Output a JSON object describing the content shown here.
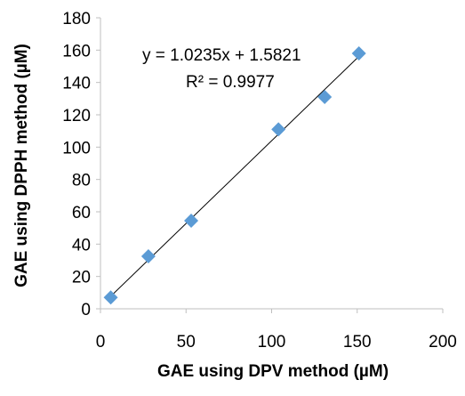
{
  "chart_data": {
    "type": "scatter",
    "title": "",
    "xlabel": "GAE using DPV method (µM)",
    "ylabel": "GAE using DPPH method (µM)",
    "xlim": [
      0,
      200
    ],
    "ylim": [
      0,
      180
    ],
    "x_ticks": [
      "0",
      "50",
      "100",
      "150",
      "200"
    ],
    "y_ticks": [
      "0",
      "20",
      "40",
      "60",
      "80",
      "100",
      "120",
      "140",
      "160",
      "180"
    ],
    "grid": false,
    "legend": "none",
    "series": [
      {
        "marker": "diamond",
        "color": "#5b9bd5",
        "points": [
          {
            "x": 6,
            "y": 7
          },
          {
            "x": 28,
            "y": 32.5
          },
          {
            "x": 53,
            "y": 54.5
          },
          {
            "x": 104,
            "y": 111
          },
          {
            "x": 131,
            "y": 131
          },
          {
            "x": 151,
            "y": 158
          }
        ]
      }
    ],
    "trendline": {
      "type": "linear",
      "slope": 1.0235,
      "intercept": 1.5821,
      "x_range": [
        6,
        151
      ],
      "color": "#000000",
      "equation_label": "y = 1.0235x + 1.5821",
      "r2_label": "R² = 0.9977"
    }
  }
}
